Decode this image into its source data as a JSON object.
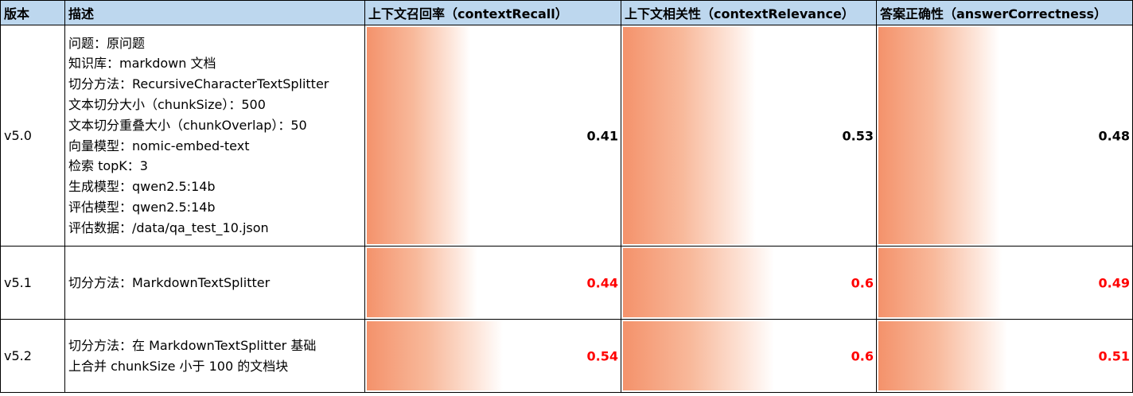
{
  "headers": {
    "version": "版本",
    "description": "描述",
    "context_recall": "上下文召回率（contextRecall）",
    "context_relevance": "上下文相关性（contextRelevance）",
    "answer_correctness": "答案正确性（answerCorrectness）"
  },
  "bar_scale_max": 1.0,
  "bar_color": "#f4926b",
  "highlight_color": "#ff0000",
  "rows": [
    {
      "version": "v5.0",
      "description": [
        "问题：原问题",
        "知识库：markdown 文档",
        "切分方法：RecursiveCharacterTextSplitter",
        "文本切分大小（chunkSize）：500",
        "文本切分重叠大小（chunkOverlap）：50",
        "向量模型：nomic-embed-text",
        "检索 topK：3",
        "生成模型：qwen2.5:14b",
        "评估模型：qwen2.5:14b",
        "评估数据：/data/qa_test_10.json"
      ],
      "context_recall": "0.41",
      "context_relevance": "0.53",
      "answer_correctness": "0.48",
      "highlight": false
    },
    {
      "version": "v5.1",
      "description": [
        "切分方法：MarkdownTextSplitter"
      ],
      "context_recall": "0.44",
      "context_relevance": "0.6",
      "answer_correctness": "0.49",
      "highlight": true
    },
    {
      "version": "v5.2",
      "description": [
        "切分方法：在 MarkdownTextSplitter 基础",
        "上合并 chunkSize 小于 100 的文档块"
      ],
      "context_recall": "0.54",
      "context_relevance": "0.6",
      "answer_correctness": "0.51",
      "highlight": true
    }
  ]
}
